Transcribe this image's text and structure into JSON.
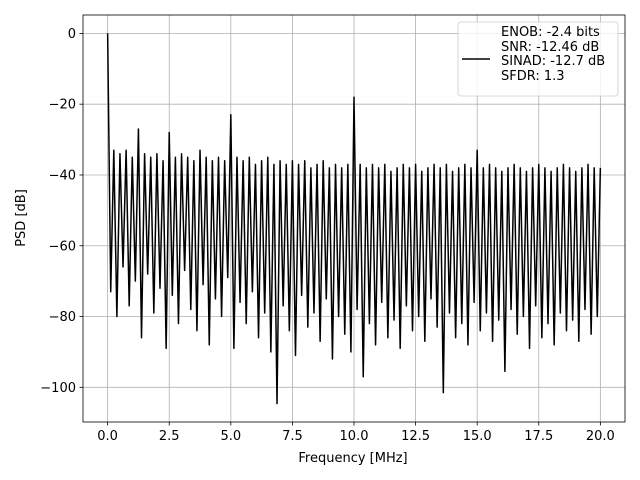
{
  "chart_data": {
    "type": "line",
    "xlabel": "Frequency [MHz]",
    "ylabel": "PSD [dB]",
    "xlim": [
      -1,
      21
    ],
    "ylim": [
      -109.8,
      5.2
    ],
    "xticks": [
      {
        "value": 0,
        "label": "0.0"
      },
      {
        "value": 2.5,
        "label": "2.5"
      },
      {
        "value": 5,
        "label": "5.0"
      },
      {
        "value": 7.5,
        "label": "7.5"
      },
      {
        "value": 10,
        "label": "10.0"
      },
      {
        "value": 12.5,
        "label": "12.5"
      },
      {
        "value": 15,
        "label": "15.0"
      },
      {
        "value": 17.5,
        "label": "17.5"
      },
      {
        "value": 20,
        "label": "20.0"
      }
    ],
    "yticks": [
      {
        "value": 0,
        "label": "0"
      },
      {
        "value": -20,
        "label": "−20"
      },
      {
        "value": -40,
        "label": "−40"
      },
      {
        "value": -60,
        "label": "−60"
      },
      {
        "value": -80,
        "label": "−80"
      },
      {
        "value": -100,
        "label": "−100"
      }
    ],
    "grid": true,
    "legend_loc": "upper right",
    "x": [
      0,
      0.125,
      0.25,
      0.375,
      0.5,
      0.625,
      0.75,
      0.875,
      1,
      1.125,
      1.25,
      1.375,
      1.5,
      1.625,
      1.75,
      1.875,
      2,
      2.125,
      2.25,
      2.375,
      2.5,
      2.625,
      2.75,
      2.875,
      3,
      3.125,
      3.25,
      3.375,
      3.5,
      3.625,
      3.75,
      3.875,
      4,
      4.125,
      4.25,
      4.375,
      4.5,
      4.625,
      4.75,
      4.875,
      5,
      5.125,
      5.25,
      5.375,
      5.5,
      5.625,
      5.75,
      5.875,
      6,
      6.125,
      6.25,
      6.375,
      6.5,
      6.625,
      6.75,
      6.875,
      7,
      7.125,
      7.25,
      7.375,
      7.5,
      7.625,
      7.75,
      7.875,
      8,
      8.125,
      8.25,
      8.375,
      8.5,
      8.625,
      8.75,
      8.875,
      9,
      9.125,
      9.25,
      9.375,
      9.5,
      9.625,
      9.75,
      9.875,
      10,
      10.125,
      10.25,
      10.375,
      10.5,
      10.625,
      10.75,
      10.875,
      11,
      11.125,
      11.25,
      11.375,
      11.5,
      11.625,
      11.75,
      11.875,
      12,
      12.125,
      12.25,
      12.375,
      12.5,
      12.625,
      12.75,
      12.875,
      13,
      13.125,
      13.25,
      13.375,
      13.5,
      13.625,
      13.75,
      13.875,
      14,
      14.125,
      14.25,
      14.375,
      14.5,
      14.625,
      14.75,
      14.875,
      15,
      15.125,
      15.25,
      15.375,
      15.5,
      15.625,
      15.75,
      15.875,
      16,
      16.125,
      16.25,
      16.375,
      16.5,
      16.625,
      16.75,
      16.875,
      17,
      17.125,
      17.25,
      17.375,
      17.5,
      17.625,
      17.75,
      17.875,
      18,
      18.125,
      18.25,
      18.375,
      18.5,
      18.625,
      18.75,
      18.875,
      19,
      19.125,
      19.25,
      19.375,
      19.5,
      19.625,
      19.75,
      19.875,
      20
    ],
    "series": [
      {
        "name": "ENOB: -2.4 bits\nSNR: -12.46 dB\nSINAD: -12.7 dB\nSFDR: 1.3",
        "color": "#000000",
        "values": [
          0,
          -73,
          -33,
          -80,
          -34,
          -66,
          -33,
          -77,
          -35,
          -70,
          -27,
          -86,
          -34,
          -68,
          -35,
          -79,
          -34,
          -72,
          -36,
          -89,
          -28,
          -74,
          -35,
          -82,
          -34,
          -67,
          -35,
          -78,
          -36,
          -84,
          -33,
          -71,
          -35,
          -88,
          -36,
          -75,
          -35,
          -80,
          -36,
          -69,
          -23,
          -89,
          -35,
          -76,
          -36,
          -82,
          -35,
          -73,
          -37,
          -86,
          -36,
          -79,
          -35,
          -90,
          -37,
          -104.6,
          -36,
          -77,
          -37,
          -84,
          -36,
          -91,
          -37,
          -74,
          -36,
          -83,
          -38,
          -79,
          -37,
          -87,
          -36,
          -75,
          -38,
          -92,
          -37,
          -80,
          -38,
          -85,
          -37,
          -90,
          -18,
          -78,
          -37,
          -97,
          -38,
          -82,
          -37,
          -88,
          -38,
          -76,
          -37,
          -86,
          -39,
          -81,
          -38,
          -89,
          -37,
          -77,
          -38,
          -84,
          -37,
          -80,
          -39,
          -87,
          -38,
          -75,
          -37,
          -83,
          -38,
          -101.5,
          -37,
          -79,
          -39,
          -86,
          -38,
          -82,
          -37,
          -88,
          -38,
          -76,
          -33,
          -84,
          -38,
          -79,
          -37,
          -87,
          -38,
          -81,
          -39,
          -95.5,
          -38,
          -78,
          -37,
          -85,
          -38,
          -80,
          -39,
          -89,
          -38,
          -77,
          -37,
          -86,
          -38,
          -82,
          -39,
          -88,
          -38,
          -79,
          -37,
          -84,
          -38,
          -81,
          -39,
          -87,
          -38,
          -78,
          -37,
          -85,
          -38,
          -80,
          -38
        ]
      }
    ]
  }
}
